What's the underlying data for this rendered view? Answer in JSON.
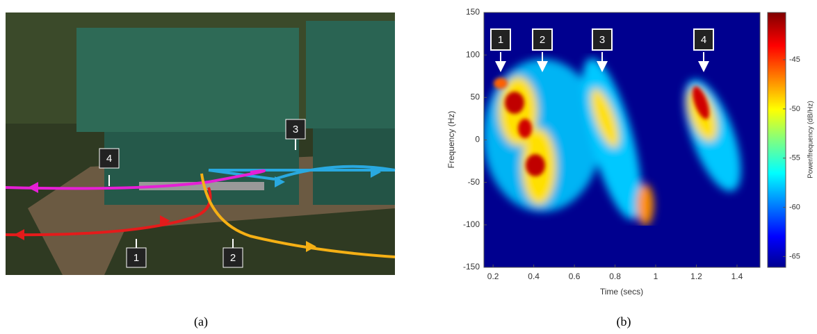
{
  "panel_a": {
    "labels": [
      "4",
      "3",
      "1",
      "2"
    ],
    "caption": "(a)"
  },
  "chart_data": {
    "type": "spectrogram",
    "xlabel": "Time (secs)",
    "ylabel": "Frequency (Hz)",
    "xlim": [
      0.155,
      1.513
    ],
    "xticks": [
      0.2,
      0.4,
      0.6,
      0.8,
      1,
      1.2,
      1.4
    ],
    "ylim": [
      -150,
      150
    ],
    "yticks": [
      -150,
      -100,
      -50,
      0,
      50,
      100,
      150
    ],
    "colorbar": {
      "label": "Power/frequency (dB/Hz)",
      "lim": [
        -66.1,
        -40.2
      ],
      "ticks": [
        -45,
        -50,
        -55,
        -60,
        -65
      ]
    },
    "annotations": [
      "1",
      "2",
      "3",
      "4"
    ],
    "caption": "(b)"
  }
}
